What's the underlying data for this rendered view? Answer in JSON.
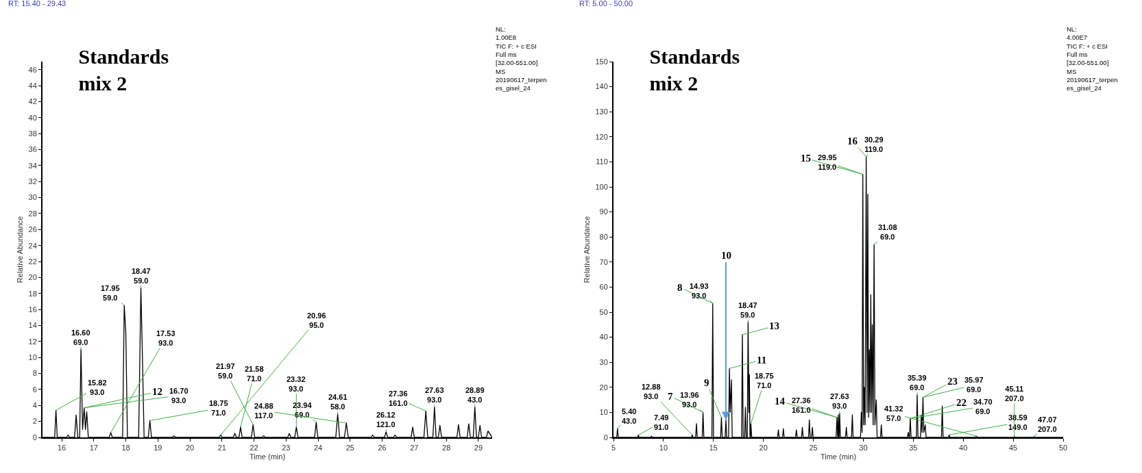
{
  "chart_data": [
    {
      "type": "line",
      "title": "Standards\nmix 2",
      "xlabel": "Time (min)",
      "ylabel": "Relative Abundance",
      "annotations": [
        "RT: 15.40 - 29.43",
        "NL:\n1.00E8\nTIC F: + c ESI\nFull ms\n[32.00-551.00]\nMS\n20190617_terpen\nes_gisel_24",
        {
          "text": "12",
          "x": 16.7,
          "y": 3.7
        },
        {
          "text": "15.82\n93.0",
          "x": 15.82,
          "y": 3.4
        },
        {
          "text": "16.60\n69.0",
          "x": 16.6,
          "y": 11
        },
        {
          "text": "16.70\n93.0",
          "x": 16.7,
          "y": 3.7
        },
        {
          "text": "17.53\n93.0",
          "x": 17.53,
          "y": 0.6
        },
        {
          "text": "17.95\n59.0",
          "x": 17.95,
          "y": 16.5
        },
        {
          "text": "18.47\n59.0",
          "x": 18.47,
          "y": 18.7
        },
        {
          "text": "18.75\n71.0",
          "x": 18.75,
          "y": 2.1
        },
        {
          "text": "20.96\n95.0",
          "x": 20.96,
          "y": 0.3
        },
        {
          "text": "21.58\n71.0",
          "x": 21.58,
          "y": 1.3
        },
        {
          "text": "21.97\n59.0",
          "x": 21.97,
          "y": 1.6
        },
        {
          "text": "23.32\n93.0",
          "x": 23.32,
          "y": 1.3
        },
        {
          "text": "23.94\n69.0",
          "x": 23.94,
          "y": 1.9
        },
        {
          "text": "24.61\n58.0",
          "x": 24.61,
          "y": 2.9
        },
        {
          "text": "24.88\n117.0",
          "x": 24.88,
          "y": 1.8
        },
        {
          "text": "26.12\n121.0",
          "x": 26.12,
          "y": 0.7
        },
        {
          "text": "27.36\n161.0",
          "x": 27.36,
          "y": 3.3
        },
        {
          "text": "27.63\n93.0",
          "x": 27.63,
          "y": 3.8
        },
        {
          "text": "28.89\n43.0",
          "x": 28.89,
          "y": 3.8
        }
      ],
      "xlim": [
        15.4,
        29.43
      ],
      "xticks": [
        16,
        17,
        18,
        19,
        20,
        21,
        22,
        23,
        24,
        25,
        26,
        27,
        28,
        29
      ],
      "ylim": [
        0,
        47
      ],
      "yticks": [
        0,
        2,
        4,
        6,
        8,
        10,
        12,
        14,
        16,
        18,
        20,
        22,
        24,
        26,
        28,
        30,
        32,
        34,
        36,
        38,
        40,
        42,
        44,
        46
      ],
      "grid": false,
      "marker": "none",
      "line_style": "solid",
      "series": [
        {
          "color": "#000000",
          "x": [
            15.4,
            15.78,
            15.82,
            15.86,
            16.15,
            16.2,
            16.25,
            16.4,
            16.45,
            16.5,
            16.56,
            16.6,
            16.65,
            16.7,
            16.74,
            16.78,
            16.83,
            17.48,
            17.53,
            17.58,
            17.9,
            17.95,
            18.0,
            18.05,
            18.4,
            18.47,
            18.52,
            18.57,
            18.7,
            18.75,
            18.8,
            19.45,
            19.5,
            19.55,
            20.91,
            20.96,
            21.01,
            21.35,
            21.4,
            21.45,
            21.53,
            21.58,
            21.63,
            21.92,
            21.97,
            22.02,
            22.25,
            22.3,
            22.35,
            23.05,
            23.1,
            23.15,
            23.27,
            23.32,
            23.37,
            23.89,
            23.94,
            23.99,
            24.55,
            24.61,
            24.67,
            24.82,
            24.88,
            24.94,
            25.65,
            25.7,
            25.75,
            26.07,
            26.12,
            26.17,
            26.35,
            26.4,
            26.45,
            26.9,
            26.95,
            27.0,
            27.3,
            27.36,
            27.42,
            27.58,
            27.63,
            27.68,
            27.75,
            27.8,
            27.85,
            28.33,
            28.38,
            28.43,
            28.65,
            28.7,
            28.75,
            28.84,
            28.89,
            28.94,
            29.0,
            29.05,
            29.1,
            29.25,
            29.3,
            29.43
          ],
          "values": [
            0,
            0,
            3.4,
            0,
            0,
            0.3,
            0,
            0,
            2.8,
            0,
            0,
            11,
            1,
            3.7,
            1,
            3.2,
            0,
            0,
            0.6,
            0,
            0,
            16.5,
            13,
            0,
            0,
            18.7,
            9.7,
            0,
            0,
            2.1,
            0,
            0,
            0.2,
            0,
            0,
            0.3,
            0,
            0,
            0.5,
            0,
            0,
            1.3,
            0,
            0,
            1.6,
            0,
            0,
            0.2,
            0,
            0,
            0.5,
            0,
            0,
            1.3,
            0,
            0,
            1.9,
            0,
            0,
            2.9,
            0,
            0,
            1.8,
            0,
            0,
            0.3,
            0,
            0,
            0.7,
            0,
            0,
            0.3,
            0,
            0,
            1.3,
            0,
            0,
            3.3,
            0,
            0,
            3.8,
            0,
            0,
            1.5,
            0,
            0,
            1.6,
            0,
            0,
            1.7,
            0,
            0,
            3.8,
            0,
            0,
            1.5,
            0,
            0,
            0.8,
            0
          ]
        }
      ]
    },
    {
      "type": "line",
      "title": "Standards\nmix 2",
      "xlabel": "Time (min)",
      "ylabel": "Relative Abundance",
      "annotations": [
        "RT: 5.00 - 50.00",
        "NL:\n4.00E7\nTIC F: + c ESI\nFull ms\n[32.00-551.00]\nMS\n20190617_terpen\nes_gisel_24",
        {
          "text": "10",
          "x": 16.25,
          "y": 7
        },
        {
          "text": "7",
          "x": 13.96,
          "y": 10
        },
        {
          "text": "8",
          "x": 14.93,
          "y": 53.5
        },
        {
          "text": "9",
          "x": 15.8,
          "y": 8
        },
        {
          "text": "11",
          "x": 16.6,
          "y": 27.5
        },
        {
          "text": "13",
          "x": 17.9,
          "y": 41
        },
        {
          "text": "14",
          "x": 27.36,
          "y": 8
        },
        {
          "text": "15",
          "x": 29.95,
          "y": 105
        },
        {
          "text": "16",
          "x": 30.29,
          "y": 112
        },
        {
          "text": "22",
          "x": 34.7,
          "y": 7.5
        },
        {
          "text": "23",
          "x": 35.97,
          "y": 16
        },
        {
          "text": "5.40\n43.0",
          "x": 5.4,
          "y": 3.5
        },
        {
          "text": "7.49\n91.0",
          "x": 7.49,
          "y": 1
        },
        {
          "text": "12.88\n93.0",
          "x": 12.88,
          "y": 1
        },
        {
          "text": "13.96\n93.0",
          "x": 13.96,
          "y": 10
        },
        {
          "text": "14.93\n93.0",
          "x": 14.93,
          "y": 53.5
        },
        {
          "text": "18.47\n59.0",
          "x": 18.47,
          "y": 46
        },
        {
          "text": "18.75\n71.0",
          "x": 18.75,
          "y": 5.5
        },
        {
          "text": "27.36\n161.0",
          "x": 27.36,
          "y": 8
        },
        {
          "text": "27.63\n93.0",
          "x": 27.63,
          "y": 9.5
        },
        {
          "text": "29.95\n119.0",
          "x": 29.95,
          "y": 105
        },
        {
          "text": "30.29\n119.0",
          "x": 30.29,
          "y": 112
        },
        {
          "text": "31.08\n69.0",
          "x": 31.08,
          "y": 77
        },
        {
          "text": "34.70\n69.0",
          "x": 34.7,
          "y": 7.5
        },
        {
          "text": "35.39\n69.0",
          "x": 35.39,
          "y": 17
        },
        {
          "text": "35.97\n69.0",
          "x": 35.97,
          "y": 16
        },
        {
          "text": "38.59\n149.0",
          "x": 38.59,
          "y": 1
        },
        {
          "text": "41.32\n57.0",
          "x": 41.32,
          "y": 0.5
        },
        {
          "text": "45.11\n207.0",
          "x": 45.11,
          "y": 0.3
        },
        {
          "text": "47.07\n207.0",
          "x": 47.07,
          "y": 0.3
        }
      ],
      "xlim": [
        5,
        50
      ],
      "xticks": [
        5,
        10,
        15,
        20,
        25,
        30,
        35,
        40,
        45,
        50
      ],
      "ylim": [
        0,
        150
      ],
      "yticks": [
        0,
        10,
        20,
        30,
        40,
        50,
        60,
        70,
        80,
        90,
        100,
        110,
        120,
        130,
        140,
        150
      ],
      "grid": false,
      "marker": "none",
      "line_style": "solid",
      "series": [
        {
          "color": "#000000",
          "x": [
            5,
            5.32,
            5.4,
            5.48,
            7.41,
            7.49,
            7.57,
            8.72,
            8.8,
            8.88,
            12.8,
            12.88,
            12.96,
            13.22,
            13.3,
            13.38,
            13.88,
            13.96,
            14.04,
            14.85,
            14.93,
            15.01,
            15.72,
            15.8,
            15.88,
            16.17,
            16.25,
            16.33,
            16.52,
            16.6,
            16.68,
            16.8,
            16.88,
            17.82,
            17.9,
            17.98,
            18.12,
            18.2,
            18.28,
            18.39,
            18.47,
            18.55,
            18.6,
            18.66,
            18.7,
            18.75,
            18.83,
            21.42,
            21.5,
            21.58,
            21.92,
            22,
            22.08,
            23.22,
            23.3,
            23.38,
            23.82,
            23.9,
            23.98,
            24.52,
            24.6,
            24.68,
            24.82,
            24.9,
            24.98,
            27.28,
            27.36,
            27.44,
            27.46,
            27.5,
            27.56,
            27.58,
            27.63,
            27.71,
            28.22,
            28.3,
            28.38,
            28.82,
            28.9,
            28.98,
            29.72,
            29.8,
            29.88,
            29.95,
            30.03,
            30.1,
            30.18,
            30.29,
            30.37,
            30.45,
            30.52,
            30.6,
            30.67,
            30.75,
            30.82,
            30.9,
            30.98,
            31.08,
            31.16,
            31.3,
            31.38,
            31.72,
            31.8,
            31.88,
            34.42,
            34.5,
            34.58,
            34.62,
            34.7,
            34.78,
            35.31,
            35.39,
            35.47,
            35.72,
            35.8,
            35.88,
            35.97,
            36.05,
            36.2,
            36.28,
            37.82,
            37.9,
            37.98,
            38.51,
            38.59,
            38.67,
            41.24,
            41.32,
            41.4,
            45.03,
            45.11,
            45.19,
            46.99,
            47.07,
            47.15,
            50
          ],
          "values": [
            0,
            0,
            3.5,
            0,
            0,
            1,
            0,
            0,
            0.5,
            0,
            0,
            1,
            0,
            0,
            5.5,
            0,
            0,
            10,
            0,
            0,
            53.5,
            0,
            0,
            8,
            0,
            0,
            7,
            0,
            0,
            27.5,
            10,
            23,
            0,
            0,
            41,
            0,
            0,
            12,
            0,
            0,
            46,
            10,
            25,
            0,
            0,
            5.5,
            0,
            0,
            3,
            0,
            0,
            3.5,
            0,
            0,
            3,
            0,
            0,
            4,
            0,
            0,
            7,
            0,
            0,
            4,
            0,
            0,
            8,
            0,
            0,
            9,
            0,
            0,
            9.5,
            0,
            0,
            4,
            0,
            0,
            9,
            0,
            0,
            10,
            2,
            105,
            5,
            20,
            5,
            112,
            10,
            97,
            8,
            35,
            10,
            57,
            10,
            45,
            5,
            77,
            5,
            15,
            0,
            0,
            5,
            0,
            0,
            2,
            0,
            0,
            7.5,
            0,
            0,
            17,
            0,
            0,
            9,
            2,
            16,
            2,
            5,
            0,
            0,
            12.5,
            0,
            0,
            1,
            0,
            0,
            0.5,
            0,
            0,
            0.3,
            0,
            0,
            0.3,
            0,
            0
          ]
        }
      ]
    }
  ]
}
